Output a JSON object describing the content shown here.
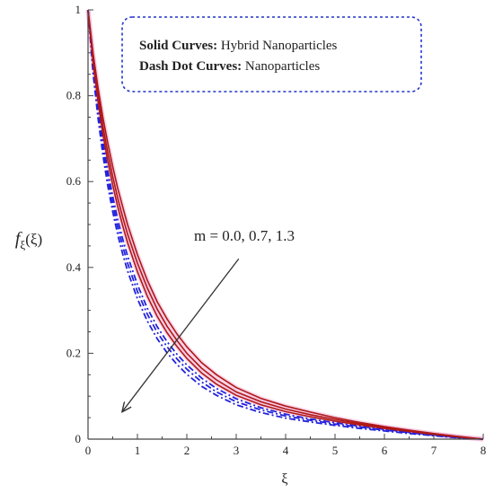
{
  "chart_data": {
    "type": "line",
    "title": "",
    "xlabel": "ξ",
    "ylabel": "f",
    "ylabel_sub": "ξ",
    "ylabel_arg": "(ξ)",
    "xlim": [
      0,
      8
    ],
    "ylim": [
      0,
      1
    ],
    "xticks": [
      "0",
      "1",
      "2",
      "3",
      "4",
      "5",
      "6",
      "7",
      "8"
    ],
    "yticks": [
      "0",
      "0.2",
      "0.4",
      "0.6",
      "0.8",
      "1"
    ],
    "xtick_values": [
      0,
      1,
      2,
      3,
      4,
      5,
      6,
      7,
      8
    ],
    "ytick_values": [
      0,
      0.2,
      0.4,
      0.6,
      0.8,
      1
    ],
    "grid": false,
    "legend_box": {
      "line1_bold": "Solid Curves:",
      "line1_rest": " Hybrid Nanoparticles",
      "line2_bold": "Dash Dot Curves:",
      "line2_rest": " Nanoparticles",
      "border_color": "#2233cc"
    },
    "annotation": {
      "text": "m = 0.0, 0.7, 1.3",
      "arrow_from": [
        3.05,
        0.42
      ],
      "arrow_to": [
        0.7,
        0.065
      ]
    },
    "x": [
      0,
      0.05,
      0.1,
      0.2,
      0.3,
      0.4,
      0.5,
      0.6,
      0.7,
      0.8,
      1.0,
      1.2,
      1.4,
      1.6,
      1.8,
      2.0,
      2.3,
      2.6,
      3.0,
      3.5,
      4.0,
      4.5,
      5.0,
      5.5,
      6.0,
      6.5,
      7.0,
      7.5,
      8.0
    ],
    "series": [
      {
        "style": "solid",
        "color": "#b01818",
        "values": [
          1.0,
          0.95,
          0.9,
          0.82,
          0.75,
          0.69,
          0.635,
          0.585,
          0.542,
          0.5,
          0.43,
          0.37,
          0.32,
          0.28,
          0.245,
          0.215,
          0.178,
          0.15,
          0.12,
          0.095,
          0.077,
          0.063,
          0.05,
          0.039,
          0.029,
          0.021,
          0.013,
          0.006,
          0.0
        ]
      },
      {
        "style": "solid",
        "color": "#b01818",
        "values": [
          1.0,
          0.945,
          0.89,
          0.805,
          0.73,
          0.668,
          0.612,
          0.562,
          0.518,
          0.478,
          0.41,
          0.352,
          0.303,
          0.263,
          0.23,
          0.2,
          0.165,
          0.138,
          0.11,
          0.087,
          0.07,
          0.057,
          0.046,
          0.036,
          0.027,
          0.019,
          0.012,
          0.005,
          0.0
        ]
      },
      {
        "style": "solid",
        "color": "#b01818",
        "values": [
          1.0,
          0.94,
          0.88,
          0.79,
          0.712,
          0.648,
          0.592,
          0.542,
          0.498,
          0.458,
          0.39,
          0.333,
          0.286,
          0.248,
          0.216,
          0.188,
          0.154,
          0.128,
          0.102,
          0.08,
          0.064,
          0.052,
          0.042,
          0.033,
          0.025,
          0.018,
          0.011,
          0.005,
          0.0
        ]
      },
      {
        "style": "dashdot",
        "color": "#2222dd",
        "values": [
          1.0,
          0.94,
          0.875,
          0.78,
          0.695,
          0.625,
          0.565,
          0.512,
          0.467,
          0.427,
          0.36,
          0.305,
          0.262,
          0.227,
          0.198,
          0.173,
          0.142,
          0.118,
          0.094,
          0.073,
          0.058,
          0.047,
          0.038,
          0.03,
          0.023,
          0.016,
          0.01,
          0.004,
          0.0
        ]
      },
      {
        "style": "dashdot",
        "color": "#2222dd",
        "values": [
          1.0,
          0.935,
          0.865,
          0.765,
          0.68,
          0.608,
          0.548,
          0.495,
          0.45,
          0.41,
          0.344,
          0.291,
          0.249,
          0.215,
          0.187,
          0.163,
          0.133,
          0.11,
          0.087,
          0.068,
          0.054,
          0.044,
          0.035,
          0.028,
          0.021,
          0.015,
          0.009,
          0.004,
          0.0
        ]
      },
      {
        "style": "dashdot",
        "color": "#2222dd",
        "values": [
          1.0,
          0.93,
          0.855,
          0.75,
          0.663,
          0.59,
          0.53,
          0.477,
          0.432,
          0.392,
          0.327,
          0.275,
          0.234,
          0.201,
          0.174,
          0.151,
          0.123,
          0.102,
          0.08,
          0.062,
          0.049,
          0.04,
          0.032,
          0.025,
          0.019,
          0.013,
          0.008,
          0.003,
          0.0
        ]
      }
    ]
  }
}
